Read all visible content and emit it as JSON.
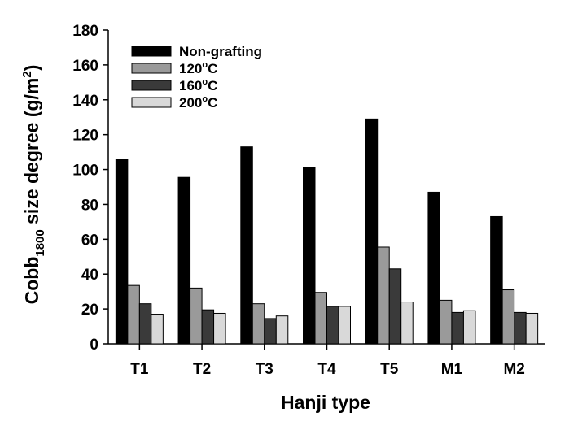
{
  "chart_data": {
    "type": "bar",
    "title": "",
    "xlabel": "Hanji type",
    "ylabel": {
      "main": "Cobb",
      "subscript": "1800",
      "rest": " size degree (g/m",
      "superscript": "2",
      "end": ")"
    },
    "categories": [
      "T1",
      "T2",
      "T3",
      "T4",
      "T5",
      "M1",
      "M2"
    ],
    "ylim": [
      0,
      180
    ],
    "yticks": [
      0,
      20,
      40,
      60,
      80,
      100,
      120,
      140,
      160,
      180
    ],
    "grid": false,
    "legend_position": "top-left",
    "series": [
      {
        "name": "Non-grafting",
        "name_main": "Non-grafting",
        "name_sup": "",
        "name_end": "",
        "color": "#000000",
        "values": [
          106,
          95.5,
          113,
          101,
          129,
          87,
          73
        ]
      },
      {
        "name": "120oC",
        "name_main": "120",
        "name_sup": "o",
        "name_end": "C",
        "color": "#9a9a9a",
        "values": [
          33.5,
          32,
          23,
          29.5,
          55.5,
          25,
          31
        ]
      },
      {
        "name": "160oC",
        "name_main": "160",
        "name_sup": "o",
        "name_end": "C",
        "color": "#3a3a3a",
        "values": [
          23,
          19.5,
          14.5,
          21.5,
          43,
          18,
          18
        ]
      },
      {
        "name": "200oC",
        "name_main": "200",
        "name_sup": "o",
        "name_end": "C",
        "color": "#d9d9d9",
        "values": [
          17,
          17.5,
          16,
          21.5,
          24,
          19,
          17.5
        ]
      }
    ]
  }
}
